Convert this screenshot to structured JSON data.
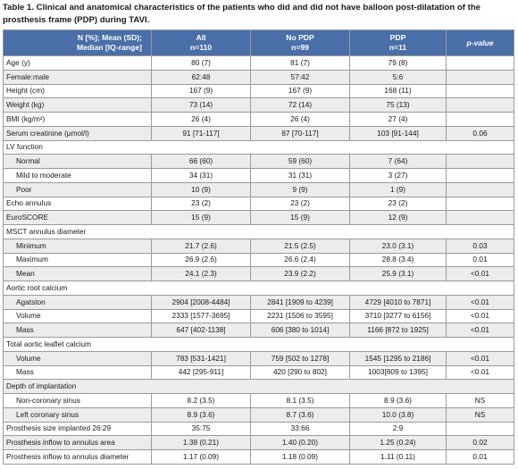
{
  "caption": "Table 1. Clinical and anatomical characteristics of the patients who did and did not have balloon post-dilatation of the prosthesis frame (PDP) during TAVI.",
  "header": {
    "col0_line1": "N [%]; Mean (SD);",
    "col0_line2": "Median [IQ-range]",
    "all_line1": "All",
    "all_line2": "n=110",
    "nopdp_line1": "No PDP",
    "nopdp_line2": "n=99",
    "pdp_line1": "PDP",
    "pdp_line2": "n=11",
    "pvalue": "p-value"
  },
  "rows": [
    {
      "label": "Age (y)",
      "all": "80 (7)",
      "nopdp": "81 (7)",
      "pdp": "79 (8)",
      "p": ""
    },
    {
      "label": "Female:male",
      "all": "62:48",
      "nopdp": "57:42",
      "pdp": "5:6",
      "p": ""
    },
    {
      "label": "Height (cm)",
      "all": "167 (9)",
      "nopdp": "167 (9)",
      "pdp": "168 (11)",
      "p": ""
    },
    {
      "label": "Weight (kg)",
      "all": "73 (14)",
      "nopdp": "72 (14)",
      "pdp": "75 (13)",
      "p": ""
    },
    {
      "label": "BMI (kg/m²)",
      "all": "26 (4)",
      "nopdp": "26 (4)",
      "pdp": "27 (4)",
      "p": ""
    },
    {
      "label": "Serum creatinine (μmol/l)",
      "all": "91 [71-117]",
      "nopdp": "87 [70-117]",
      "pdp": "103 [91-144]",
      "p": "0.06"
    },
    {
      "label": "LV function",
      "section": true
    },
    {
      "label": "Normal",
      "sub": true,
      "all": "66 (60)",
      "nopdp": "59 (60)",
      "pdp": "7 (64)",
      "p": ""
    },
    {
      "label": "Mild to moderate",
      "sub": true,
      "all": "34 (31)",
      "nopdp": "31 (31)",
      "pdp": "3 (27)",
      "p": ""
    },
    {
      "label": "Poor",
      "sub": true,
      "all": "10 (9)",
      "nopdp": "9 (9)",
      "pdp": "1 (9)",
      "p": ""
    },
    {
      "label": "Echo annulus",
      "all": "23 (2)",
      "nopdp": "23 (2)",
      "pdp": "23 (2)",
      "p": ""
    },
    {
      "label": "EuroSCORE",
      "all": "15 (9)",
      "nopdp": "15 (9)",
      "pdp": "12 (9)",
      "p": ""
    },
    {
      "label": "MSCT annulus diameter",
      "section": true
    },
    {
      "label": "Minimum",
      "sub": true,
      "all": "21.7 (2.6)",
      "nopdp": "21.5 (2.5)",
      "pdp": "23.0 (3.1)",
      "p": "0.03"
    },
    {
      "label": "Maximum",
      "sub": true,
      "all": "26.9 (2.6)",
      "nopdp": "26.6 (2.4)",
      "pdp": "28.8 (3.4)",
      "p": "0.01"
    },
    {
      "label": "Mean",
      "sub": true,
      "all": "24.1 (2.3)",
      "nopdp": "23.9 (2.2)",
      "pdp": "25.9 (3.1)",
      "p": "<0.01"
    },
    {
      "label": "Aortic root calcium",
      "section": true
    },
    {
      "label": "Agatston",
      "sub": true,
      "all": "2904 [2008-4484]",
      "nopdp": "2841 [1909 to 4239]",
      "pdp": "4729 [4010 to 7871]",
      "p": "<0.01"
    },
    {
      "label": "Volume",
      "sub": true,
      "all": "2333 [1577-3695]",
      "nopdp": "2231 [1506 to 3595]",
      "pdp": "3710 [3277 to 6156]",
      "p": "<0.01"
    },
    {
      "label": "Mass",
      "sub": true,
      "all": "647 [402-1138]",
      "nopdp": "606 [380 to 1014]",
      "pdp": "1166 [872 to 1925]",
      "p": "<0.01"
    },
    {
      "label": "Total aortic leaflet calcium",
      "section": true
    },
    {
      "label": "Volume",
      "sub": true,
      "all": "783 [531-1421]",
      "nopdp": "759 [502 to 1278]",
      "pdp": "1545 [1295 to 2186]",
      "p": "<0.01"
    },
    {
      "label": "Mass",
      "sub": true,
      "all": "442 [295-911]",
      "nopdp": "420 [290 to 802]",
      "pdp": "1003[809 to 1395]",
      "p": "<0.01"
    },
    {
      "label": "Depth of implantation",
      "section": true
    },
    {
      "label": "Non-coronary sinus",
      "sub": true,
      "all": "8.2 (3.5)",
      "nopdp": "8.1 (3.5)",
      "pdp": "8.9 (3.6)",
      "p": "NS"
    },
    {
      "label": "Left coronary sinus",
      "sub": true,
      "all": "8.9 (3.6)",
      "nopdp": "8.7 (3.6)",
      "pdp": "10.0 (3.8)",
      "p": "NS"
    },
    {
      "label": "Prosthesis size implanted 26:29",
      "all": "35:75",
      "nopdp": "33:66",
      "pdp": "2:9",
      "p": ""
    },
    {
      "label": "Prosthesis inflow to annulus area",
      "all": "1.38 (0.21)",
      "nopdp": "1.40 (0.20)",
      "pdp": "1.25 (0.24)",
      "p": "0.02"
    },
    {
      "label": "Prosthesis inflow to annulus diameter",
      "all": "1.17 (0.09)",
      "nopdp": "1.18 (0.09)",
      "pdp": "1.11 (0.11)",
      "p": "0.01"
    }
  ]
}
